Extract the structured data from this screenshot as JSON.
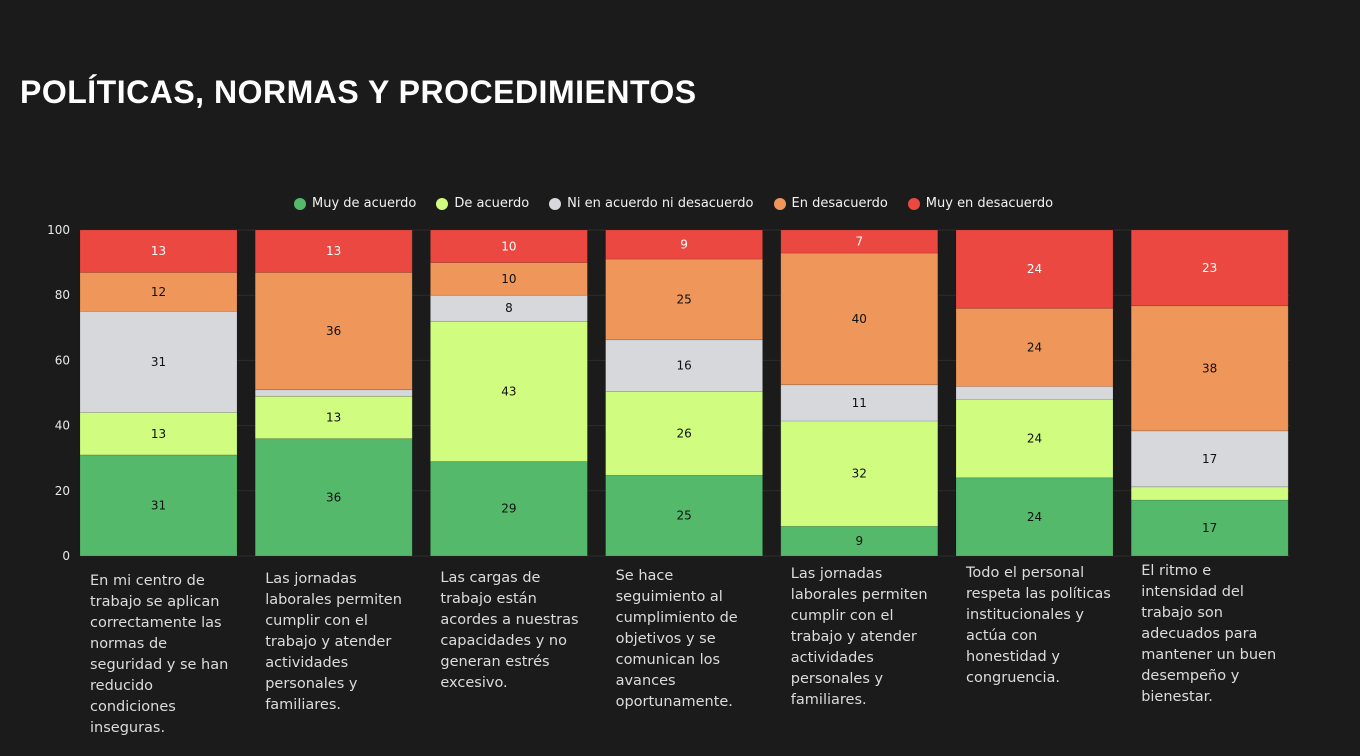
{
  "title": "POLÍTICAS, NORMAS Y PROCEDIMIENTOS",
  "chart_data": {
    "type": "bar",
    "stacked": true,
    "normalized_percent": true,
    "ylim": [
      0,
      100
    ],
    "yticks": [
      "0",
      "20",
      "40",
      "60",
      "80",
      "100"
    ],
    "grid": true,
    "legend_position": "top",
    "categories": [
      "En mi centro de trabajo se aplican correctamente las normas de seguridad y se han reducido condiciones inseguras.",
      "Las jornadas laborales permiten cumplir con el trabajo y atender actividades personales y familiares.",
      "Las cargas de trabajo están acordes a nuestras capacidades y no generan estrés excesivo.",
      "Se hace seguimiento al cumplimiento de objetivos y se comunican los avances oportunamente.",
      "Las jornadas laborales permiten cumplir con el trabajo y atender actividades personales y familiares.",
      "Todo el personal respeta las políticas institucionales y actúa con honestidad y congruencia.",
      "El ritmo e intensidad del trabajo son adecuados para mantener un buen desempeño y bienestar."
    ],
    "series": [
      {
        "name": "Muy de acuerdo",
        "color": "#55b96b",
        "values": [
          31,
          36,
          29,
          25,
          9,
          24,
          17
        ]
      },
      {
        "name": "De acuerdo",
        "color": "#d0fc80",
        "values": [
          13,
          13,
          43,
          26,
          32,
          24,
          4
        ]
      },
      {
        "name": "Ni en acuerdo ni desacuerdo",
        "color": "#d7d8db",
        "values": [
          31,
          2,
          8,
          16,
          11,
          4,
          17
        ]
      },
      {
        "name": "En desacuerdo",
        "color": "#ef965a",
        "values": [
          12,
          36,
          10,
          25,
          40,
          24,
          38
        ]
      },
      {
        "name": "Muy en desacuerdo",
        "color": "#ea4840",
        "values": [
          13,
          13,
          10,
          9,
          7,
          24,
          23
        ]
      }
    ]
  }
}
